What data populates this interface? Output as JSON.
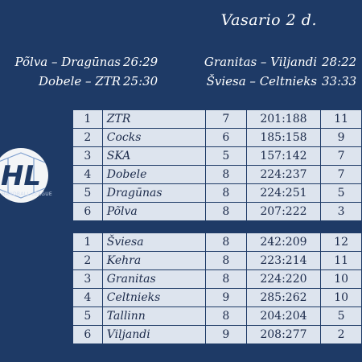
{
  "title": "Vasario 2 d.",
  "results": [
    {
      "left_match": "Põlva – Dragūnas",
      "left_score": "26:29",
      "right_match": "Granitas – Viljandi",
      "right_score": "28:22"
    },
    {
      "left_match": "Dobele – ZTR",
      "left_score": "25:30",
      "right_match": "Šviesa – Celtnieks",
      "right_score": "33:33"
    }
  ],
  "logo": {
    "letters": "HL",
    "caption": "HANDBALL LEAGUE",
    "icon": "handball-icon"
  },
  "groupA": [
    {
      "rank": "1",
      "team": "ZTR",
      "games": "7",
      "goals": "201:188",
      "points": "11"
    },
    {
      "rank": "2",
      "team": "Cocks",
      "games": "6",
      "goals": "185:158",
      "points": "9"
    },
    {
      "rank": "3",
      "team": "SKA",
      "games": "5",
      "goals": "157:142",
      "points": "7"
    },
    {
      "rank": "4",
      "team": "Dobele",
      "games": "8",
      "goals": "224:237",
      "points": "7"
    },
    {
      "rank": "5",
      "team": "Dragūnas",
      "games": "8",
      "goals": "224:251",
      "points": "5"
    },
    {
      "rank": "6",
      "team": "Põlva",
      "games": "8",
      "goals": "207:222",
      "points": "3"
    }
  ],
  "groupB": [
    {
      "rank": "1",
      "team": "Šviesa",
      "games": "8",
      "goals": "242:209",
      "points": "12"
    },
    {
      "rank": "2",
      "team": "Kehra",
      "games": "8",
      "goals": "223:214",
      "points": "11"
    },
    {
      "rank": "3",
      "team": "Granitas",
      "games": "8",
      "goals": "224:220",
      "points": "10"
    },
    {
      "rank": "4",
      "team": "Celtnieks",
      "games": "9",
      "goals": "285:262",
      "points": "10"
    },
    {
      "rank": "5",
      "team": "Tallinn",
      "games": "8",
      "goals": "204:204",
      "points": "5"
    },
    {
      "rank": "6",
      "team": "Viljandi",
      "games": "9",
      "goals": "208:277",
      "points": "2"
    }
  ]
}
